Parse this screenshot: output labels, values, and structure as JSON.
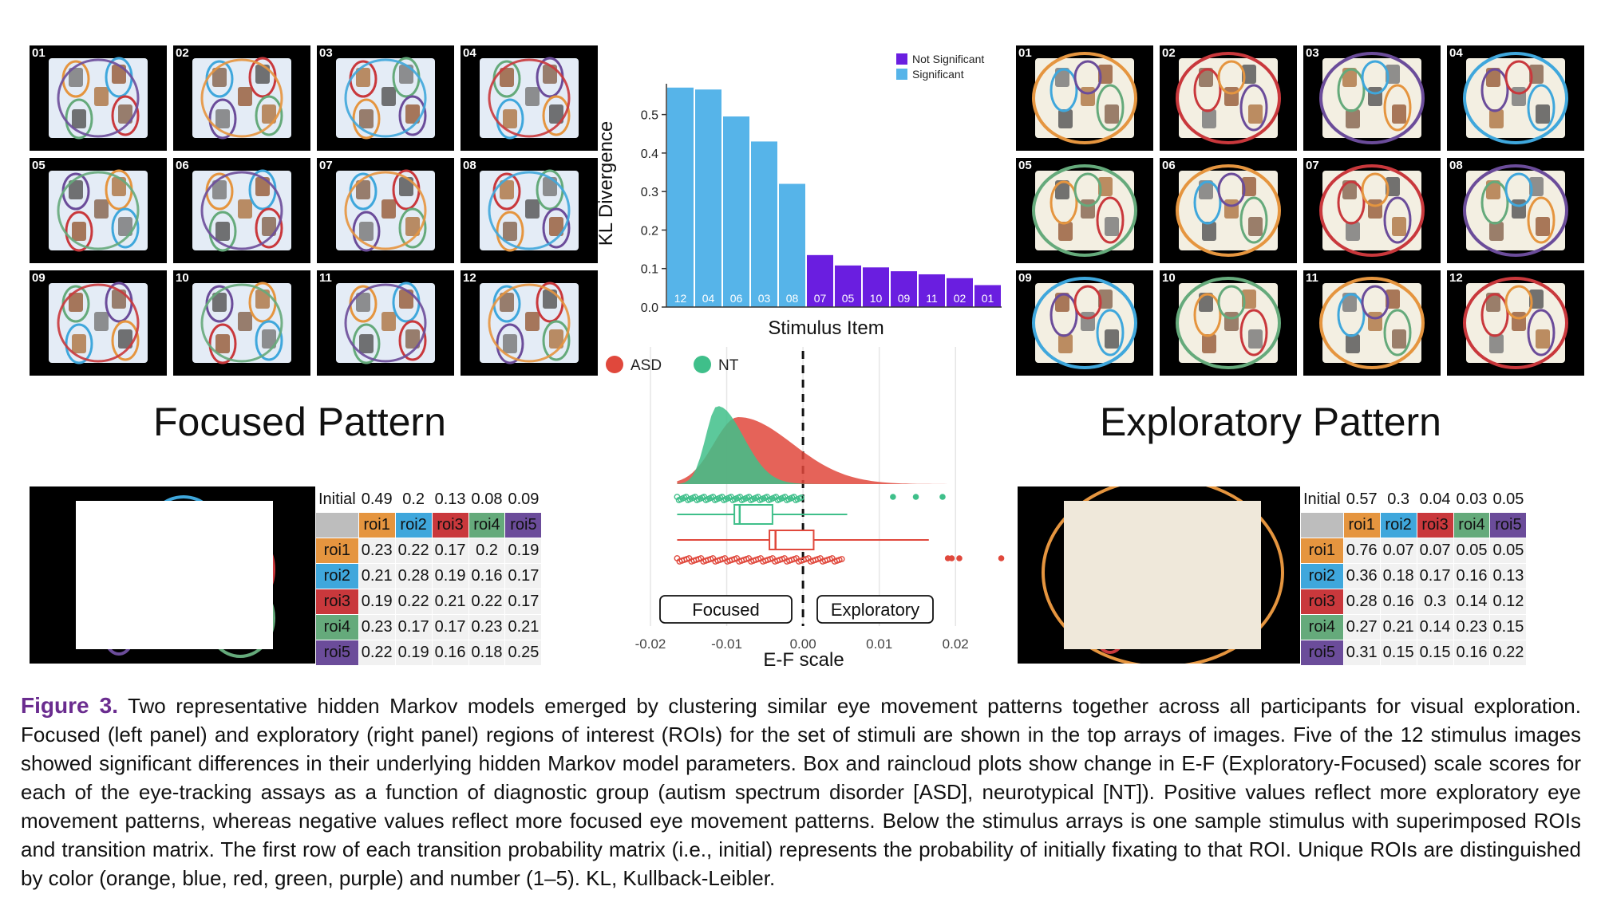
{
  "focused": {
    "title": "Focused Pattern",
    "thumbs": [
      "01",
      "02",
      "03",
      "04",
      "05",
      "06",
      "07",
      "08",
      "09",
      "10",
      "11",
      "12"
    ],
    "initial": [
      "Initial",
      "0.49",
      "0.2",
      "0.13",
      "0.08",
      "0.09"
    ],
    "header": [
      "roi1",
      "roi2",
      "roi3",
      "roi4",
      "roi5"
    ],
    "rows": [
      {
        "label": "roi1",
        "vals": [
          "0.23",
          "0.22",
          "0.17",
          "0.2",
          "0.19"
        ]
      },
      {
        "label": "roi2",
        "vals": [
          "0.21",
          "0.28",
          "0.19",
          "0.16",
          "0.17"
        ]
      },
      {
        "label": "roi3",
        "vals": [
          "0.19",
          "0.22",
          "0.21",
          "0.22",
          "0.17"
        ]
      },
      {
        "label": "roi4",
        "vals": [
          "0.23",
          "0.17",
          "0.17",
          "0.23",
          "0.21"
        ]
      },
      {
        "label": "roi5",
        "vals": [
          "0.22",
          "0.19",
          "0.16",
          "0.18",
          "0.25"
        ]
      }
    ]
  },
  "exploratory": {
    "title": "Exploratory Pattern",
    "thumbs": [
      "01",
      "02",
      "03",
      "04",
      "05",
      "06",
      "07",
      "08",
      "09",
      "10",
      "11",
      "12"
    ],
    "initial": [
      "Initial",
      "0.57",
      "0.3",
      "0.04",
      "0.03",
      "0.05"
    ],
    "header": [
      "roi1",
      "roi2",
      "roi3",
      "roi4",
      "roi5"
    ],
    "rows": [
      {
        "label": "roi1",
        "vals": [
          "0.76",
          "0.07",
          "0.07",
          "0.05",
          "0.05"
        ]
      },
      {
        "label": "roi2",
        "vals": [
          "0.36",
          "0.18",
          "0.17",
          "0.16",
          "0.13"
        ]
      },
      {
        "label": "roi3",
        "vals": [
          "0.28",
          "0.16",
          "0.3",
          "0.14",
          "0.12"
        ]
      },
      {
        "label": "roi4",
        "vals": [
          "0.27",
          "0.21",
          "0.14",
          "0.23",
          "0.15"
        ]
      },
      {
        "label": "roi5",
        "vals": [
          "0.31",
          "0.15",
          "0.15",
          "0.16",
          "0.22"
        ]
      }
    ]
  },
  "chart_data": [
    {
      "type": "bar",
      "title": "",
      "xlabel": "Stimulus Item",
      "ylabel": "KL Divergence",
      "ylim": [
        0,
        0.58
      ],
      "yticks": [
        "0.0",
        "0.1",
        "0.2",
        "0.3",
        "0.4",
        "0.5"
      ],
      "categories": [
        "12",
        "04",
        "06",
        "03",
        "08",
        "07",
        "05",
        "10",
        "09",
        "11",
        "02",
        "01"
      ],
      "values": [
        0.57,
        0.565,
        0.495,
        0.43,
        0.32,
        0.135,
        0.108,
        0.103,
        0.093,
        0.085,
        0.075,
        0.057
      ],
      "groups": [
        "Significant",
        "Significant",
        "Significant",
        "Significant",
        "Significant",
        "Not Significant",
        "Not Significant",
        "Not Significant",
        "Not Significant",
        "Not Significant",
        "Not Significant",
        "Not Significant"
      ],
      "legend": [
        {
          "label": "Not Significant",
          "color": "#6a1ee0"
        },
        {
          "label": "Significant",
          "color": "#56b4e9"
        }
      ],
      "legend_position": "top-right"
    },
    {
      "type": "raincloud",
      "xlabel": "E-F scale",
      "xlim": [
        -0.02,
        0.025
      ],
      "xticks": [
        "-0.02",
        "-0.01",
        "0.00",
        "0.01",
        "0.02"
      ],
      "reference_line": 0.0,
      "legend": [
        {
          "label": "ASD",
          "color": "#e0483c"
        },
        {
          "label": "NT",
          "color": "#3fbf8a"
        }
      ],
      "annotations": [
        "Focused",
        "Exploratory"
      ],
      "series": [
        {
          "name": "ASD",
          "q1": -0.0044,
          "median": -0.0036,
          "q3": 0.0014,
          "whisker_low": -0.0165,
          "whisker_high": 0.0165,
          "outliers": [
            0.019,
            0.0195,
            0.0205,
            0.026
          ]
        },
        {
          "name": "NT",
          "q1": -0.009,
          "median": -0.0083,
          "q3": -0.004,
          "whisker_low": -0.0165,
          "whisker_high": 0.0058,
          "outliers": [
            0.0118,
            0.0148,
            0.0183
          ]
        }
      ]
    }
  ],
  "caption": {
    "label": "Figure 3.",
    "text": "Two representative hidden Markov models emerged by clustering similar eye movement patterns together across all participants for visual exploration. Focused (left panel) and exploratory (right panel) regions of interest (ROIs) for the set of stimuli are shown in the top arrays of images. Five of the 12 stimulus images showed significant differences in their underlying hidden Markov model parameters. Box and raincloud plots show change in E-F (Exploratory-Focused) scale scores for each of the eye-tracking assays as a function of diagnostic group (autism spectrum disorder [ASD], neurotypical [NT]). Positive values reflect more exploratory eye movement patterns, whereas negative values reflect more focused eye movement patterns. Below the stimulus arrays is one sample stimulus with superimposed ROIs and transition matrix. The first row of each transition probability matrix (i.e., initial) represents the probability of initially fixating to that ROI. Unique ROIs are distinguished by color (orange, blue, red, green, purple) and number (1–5). KL, Kullback-Leibler."
  }
}
